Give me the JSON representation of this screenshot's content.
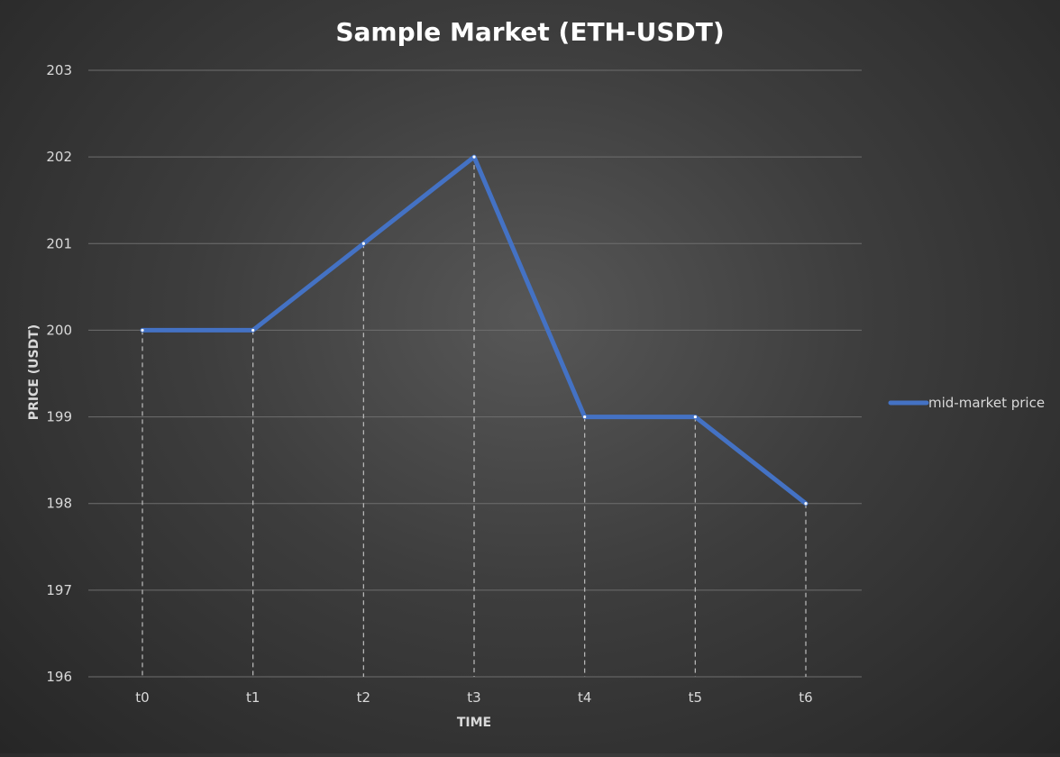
{
  "chart_data": {
    "type": "line",
    "title": "Sample Market (ETH-USDT)",
    "xlabel": "TIME",
    "ylabel": "PRICE (USDT)",
    "categories": [
      "t0",
      "t1",
      "t2",
      "t3",
      "t4",
      "t5",
      "t6"
    ],
    "ylim": [
      196,
      203
    ],
    "yticks": [
      196,
      197,
      198,
      199,
      200,
      201,
      202,
      203
    ],
    "grid": true,
    "drop_lines": true,
    "legend_position": "right",
    "series": [
      {
        "name": "mid-market price",
        "values": [
          200,
          200,
          201,
          202,
          199,
          199,
          198
        ],
        "color": "#4472c4"
      }
    ]
  },
  "colors": {
    "background": "#3b3b3b",
    "gridline": "#6e6e6e",
    "drop_line": "#bfbfbf",
    "text": "#d9d9d9",
    "title": "#ffffff"
  }
}
